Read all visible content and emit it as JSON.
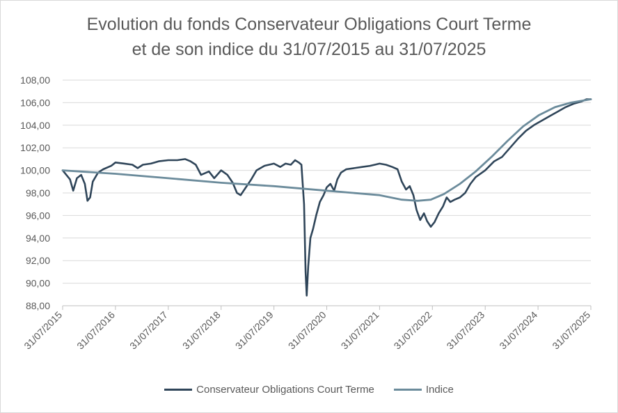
{
  "chart_data": {
    "type": "line",
    "title": [
      "Evolution du fonds Conservateur Obligations Court Terme",
      "et de son indice du 31/07/2015 au 31/07/2025"
    ],
    "x_ticks": [
      "31/07/2015",
      "31/07/2016",
      "31/07/2017",
      "31/07/2018",
      "31/07/2019",
      "31/07/2020",
      "31/07/2021",
      "31/07/2022",
      "31/07/2023",
      "31/07/2024",
      "31/07/2025"
    ],
    "y_ticks": [
      "88,00",
      "90,00",
      "92,00",
      "94,00",
      "96,00",
      "98,00",
      "100,00",
      "102,00",
      "104,00",
      "106,00",
      "108,00"
    ],
    "ylim": [
      88,
      108
    ],
    "xlim": [
      2015.58,
      2025.58
    ],
    "grid": "horizontal",
    "legend_position": "bottom",
    "series": [
      {
        "name": "Conservateur Obligations Court Terme",
        "color": "#2f4559",
        "points": [
          [
            2015.58,
            100.0
          ],
          [
            2015.65,
            99.6
          ],
          [
            2015.72,
            99.2
          ],
          [
            2015.78,
            98.2
          ],
          [
            2015.85,
            99.3
          ],
          [
            2015.93,
            99.6
          ],
          [
            2016.0,
            98.8
          ],
          [
            2016.05,
            97.3
          ],
          [
            2016.1,
            97.6
          ],
          [
            2016.15,
            99.0
          ],
          [
            2016.25,
            99.8
          ],
          [
            2016.35,
            100.1
          ],
          [
            2016.5,
            100.4
          ],
          [
            2016.58,
            100.7
          ],
          [
            2016.75,
            100.6
          ],
          [
            2016.9,
            100.5
          ],
          [
            2017.0,
            100.2
          ],
          [
            2017.1,
            100.5
          ],
          [
            2017.25,
            100.6
          ],
          [
            2017.4,
            100.8
          ],
          [
            2017.58,
            100.9
          ],
          [
            2017.75,
            100.9
          ],
          [
            2017.9,
            101.0
          ],
          [
            2018.0,
            100.8
          ],
          [
            2018.1,
            100.5
          ],
          [
            2018.2,
            99.6
          ],
          [
            2018.35,
            99.9
          ],
          [
            2018.45,
            99.3
          ],
          [
            2018.58,
            100.0
          ],
          [
            2018.7,
            99.6
          ],
          [
            2018.8,
            98.9
          ],
          [
            2018.88,
            98.0
          ],
          [
            2018.95,
            97.8
          ],
          [
            2019.05,
            98.5
          ],
          [
            2019.15,
            99.2
          ],
          [
            2019.25,
            100.0
          ],
          [
            2019.4,
            100.4
          ],
          [
            2019.58,
            100.6
          ],
          [
            2019.7,
            100.3
          ],
          [
            2019.8,
            100.6
          ],
          [
            2019.9,
            100.5
          ],
          [
            2019.98,
            100.9
          ],
          [
            2020.05,
            100.7
          ],
          [
            2020.1,
            100.5
          ],
          [
            2020.15,
            97.0
          ],
          [
            2020.18,
            91.0
          ],
          [
            2020.2,
            88.9
          ],
          [
            2020.23,
            91.5
          ],
          [
            2020.27,
            94.0
          ],
          [
            2020.32,
            94.8
          ],
          [
            2020.38,
            96.0
          ],
          [
            2020.45,
            97.2
          ],
          [
            2020.52,
            97.8
          ],
          [
            2020.58,
            98.5
          ],
          [
            2020.65,
            98.8
          ],
          [
            2020.72,
            98.2
          ],
          [
            2020.78,
            99.2
          ],
          [
            2020.85,
            99.8
          ],
          [
            2020.95,
            100.1
          ],
          [
            2021.1,
            100.2
          ],
          [
            2021.25,
            100.3
          ],
          [
            2021.4,
            100.4
          ],
          [
            2021.58,
            100.6
          ],
          [
            2021.7,
            100.5
          ],
          [
            2021.82,
            100.3
          ],
          [
            2021.92,
            100.1
          ],
          [
            2022.0,
            99.0
          ],
          [
            2022.08,
            98.3
          ],
          [
            2022.15,
            98.6
          ],
          [
            2022.22,
            97.8
          ],
          [
            2022.28,
            96.5
          ],
          [
            2022.35,
            95.6
          ],
          [
            2022.42,
            96.2
          ],
          [
            2022.48,
            95.5
          ],
          [
            2022.55,
            95.0
          ],
          [
            2022.62,
            95.4
          ],
          [
            2022.7,
            96.2
          ],
          [
            2022.78,
            96.8
          ],
          [
            2022.85,
            97.6
          ],
          [
            2022.92,
            97.2
          ],
          [
            2023.0,
            97.4
          ],
          [
            2023.1,
            97.6
          ],
          [
            2023.2,
            98.0
          ],
          [
            2023.3,
            98.8
          ],
          [
            2023.4,
            99.4
          ],
          [
            2023.58,
            100.0
          ],
          [
            2023.75,
            100.8
          ],
          [
            2023.9,
            101.2
          ],
          [
            2024.05,
            102.0
          ],
          [
            2024.2,
            102.8
          ],
          [
            2024.35,
            103.5
          ],
          [
            2024.5,
            104.0
          ],
          [
            2024.65,
            104.4
          ],
          [
            2024.8,
            104.8
          ],
          [
            2024.95,
            105.2
          ],
          [
            2025.1,
            105.6
          ],
          [
            2025.25,
            105.9
          ],
          [
            2025.4,
            106.1
          ],
          [
            2025.5,
            106.3
          ],
          [
            2025.58,
            106.3
          ]
        ]
      },
      {
        "name": "Indice",
        "color": "#6b8b9b",
        "points": [
          [
            2015.58,
            100.0
          ],
          [
            2016.58,
            99.7
          ],
          [
            2017.58,
            99.3
          ],
          [
            2018.58,
            98.9
          ],
          [
            2019.58,
            98.6
          ],
          [
            2020.58,
            98.2
          ],
          [
            2021.58,
            97.8
          ],
          [
            2022.0,
            97.4
          ],
          [
            2022.3,
            97.3
          ],
          [
            2022.55,
            97.4
          ],
          [
            2022.8,
            97.9
          ],
          [
            2023.1,
            98.8
          ],
          [
            2023.4,
            99.9
          ],
          [
            2023.7,
            101.2
          ],
          [
            2024.0,
            102.6
          ],
          [
            2024.3,
            103.9
          ],
          [
            2024.6,
            104.9
          ],
          [
            2024.9,
            105.6
          ],
          [
            2025.2,
            106.0
          ],
          [
            2025.58,
            106.3
          ]
        ]
      }
    ]
  }
}
